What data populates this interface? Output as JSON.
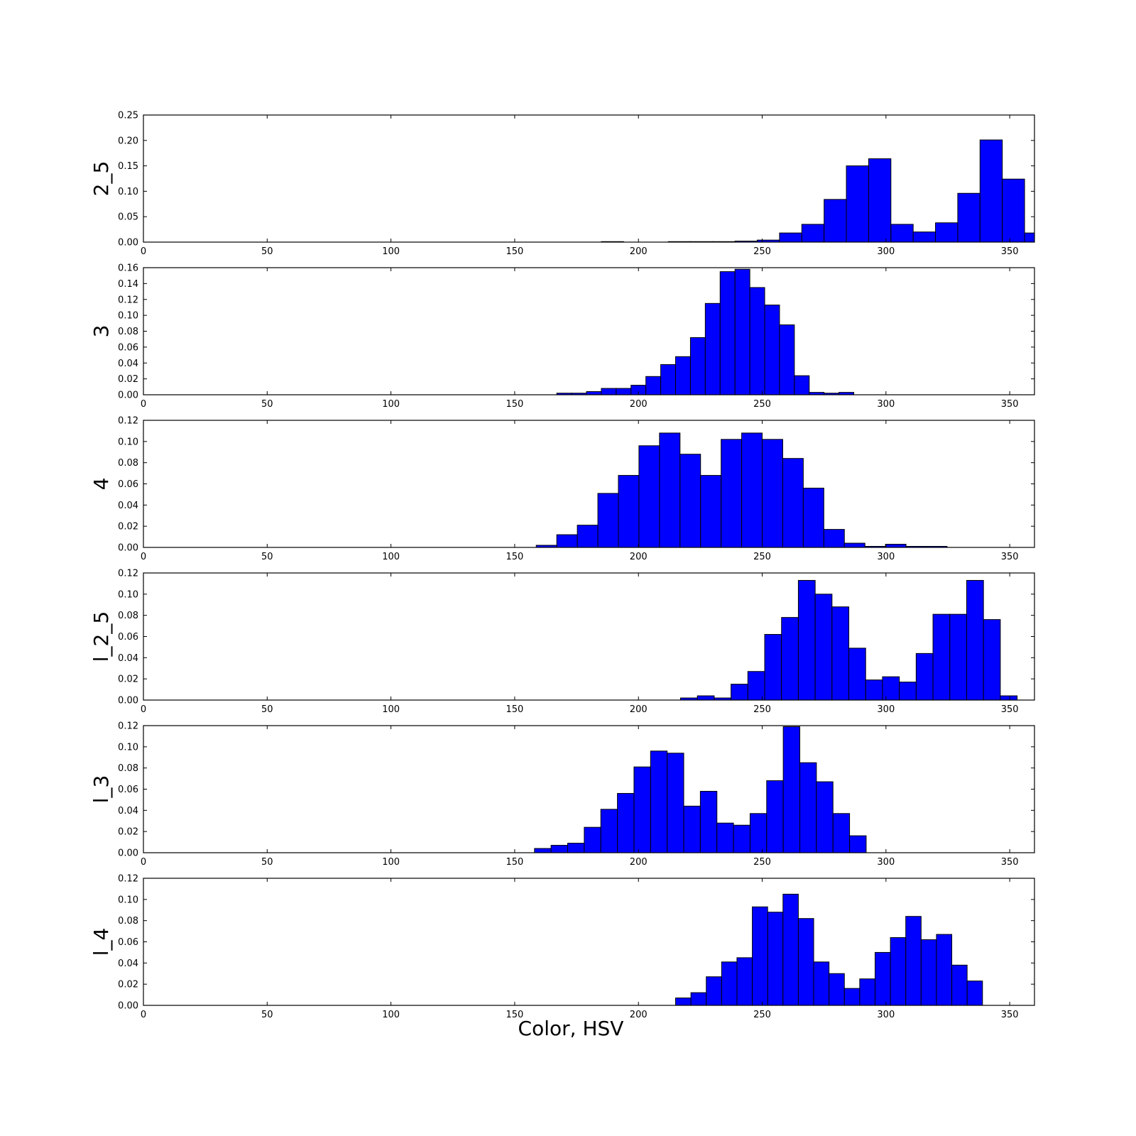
{
  "figure": {
    "xlabel": "Color, HSV"
  },
  "chart_data": [
    {
      "type": "bar",
      "ylabel": "2_5",
      "xlim": [
        0,
        360
      ],
      "ylim": [
        0,
        0.25
      ],
      "xticks": [
        "0",
        "50",
        "100",
        "150",
        "200",
        "250",
        "300",
        "350"
      ],
      "yticks": [
        "0.00",
        "0.05",
        "0.10",
        "0.15",
        "0.20",
        "0.25"
      ],
      "bins": [
        {
          "x0": 185.0,
          "x1": 194.0,
          "value": 0.001
        },
        {
          "x0": 212.0,
          "x1": 221.0,
          "value": 0.001
        },
        {
          "x0": 221.0,
          "x1": 230.0,
          "value": 0.001
        },
        {
          "x0": 230.0,
          "x1": 239.0,
          "value": 0.001
        },
        {
          "x0": 239.0,
          "x1": 248.0,
          "value": 0.002
        },
        {
          "x0": 248.0,
          "x1": 257.0,
          "value": 0.004
        },
        {
          "x0": 257.0,
          "x1": 266.0,
          "value": 0.018
        },
        {
          "x0": 266.0,
          "x1": 275.0,
          "value": 0.035
        },
        {
          "x0": 275.0,
          "x1": 284.0,
          "value": 0.084
        },
        {
          "x0": 284.0,
          "x1": 293.0,
          "value": 0.15
        },
        {
          "x0": 293.0,
          "x1": 302.0,
          "value": 0.164
        },
        {
          "x0": 302.0,
          "x1": 311.0,
          "value": 0.035
        },
        {
          "x0": 311.0,
          "x1": 320.0,
          "value": 0.02
        },
        {
          "x0": 320.0,
          "x1": 329.0,
          "value": 0.038
        },
        {
          "x0": 329.0,
          "x1": 338.0,
          "value": 0.096
        },
        {
          "x0": 338.0,
          "x1": 347.0,
          "value": 0.201
        },
        {
          "x0": 347.0,
          "x1": 356.0,
          "value": 0.124
        },
        {
          "x0": 356.0,
          "x1": 365.0,
          "value": 0.018
        }
      ]
    },
    {
      "type": "bar",
      "ylabel": "3",
      "xlim": [
        0,
        360
      ],
      "ylim": [
        0,
        0.16
      ],
      "xticks": [
        "0",
        "50",
        "100",
        "150",
        "200",
        "250",
        "300",
        "350"
      ],
      "yticks": [
        "0.00",
        "0.02",
        "0.04",
        "0.06",
        "0.08",
        "0.10",
        "0.12",
        "0.14",
        "0.16"
      ],
      "bins": [
        {
          "x0": 167.0,
          "x1": 173.0,
          "value": 0.002
        },
        {
          "x0": 173.0,
          "x1": 179.0,
          "value": 0.002
        },
        {
          "x0": 179.0,
          "x1": 185.0,
          "value": 0.004
        },
        {
          "x0": 185.0,
          "x1": 191.0,
          "value": 0.008
        },
        {
          "x0": 191.0,
          "x1": 197.0,
          "value": 0.008
        },
        {
          "x0": 197.0,
          "x1": 203.0,
          "value": 0.012
        },
        {
          "x0": 203.0,
          "x1": 209.0,
          "value": 0.023
        },
        {
          "x0": 209.0,
          "x1": 215.0,
          "value": 0.038
        },
        {
          "x0": 215.0,
          "x1": 221.0,
          "value": 0.048
        },
        {
          "x0": 221.0,
          "x1": 227.0,
          "value": 0.072
        },
        {
          "x0": 227.0,
          "x1": 233.0,
          "value": 0.115
        },
        {
          "x0": 233.0,
          "x1": 239.0,
          "value": 0.155
        },
        {
          "x0": 239.0,
          "x1": 245.0,
          "value": 0.158
        },
        {
          "x0": 245.0,
          "x1": 251.0,
          "value": 0.135
        },
        {
          "x0": 251.0,
          "x1": 257.0,
          "value": 0.113
        },
        {
          "x0": 257.0,
          "x1": 263.0,
          "value": 0.088
        },
        {
          "x0": 263.0,
          "x1": 269.0,
          "value": 0.024
        },
        {
          "x0": 269.0,
          "x1": 275.0,
          "value": 0.003
        },
        {
          "x0": 275.0,
          "x1": 281.0,
          "value": 0.002
        },
        {
          "x0": 281.0,
          "x1": 287.0,
          "value": 0.003
        }
      ]
    },
    {
      "type": "bar",
      "ylabel": "4",
      "xlim": [
        0,
        360
      ],
      "ylim": [
        0,
        0.12
      ],
      "xticks": [
        "0",
        "50",
        "100",
        "150",
        "200",
        "250",
        "300",
        "350"
      ],
      "yticks": [
        "0.00",
        "0.02",
        "0.04",
        "0.06",
        "0.08",
        "0.10",
        "0.12"
      ],
      "bins": [
        {
          "x0": 158.7,
          "x1": 167.0,
          "value": 0.002
        },
        {
          "x0": 167.0,
          "x1": 175.3,
          "value": 0.012
        },
        {
          "x0": 175.3,
          "x1": 183.6,
          "value": 0.021
        },
        {
          "x0": 183.6,
          "x1": 191.9,
          "value": 0.051
        },
        {
          "x0": 191.9,
          "x1": 200.2,
          "value": 0.068
        },
        {
          "x0": 200.2,
          "x1": 208.5,
          "value": 0.096
        },
        {
          "x0": 208.5,
          "x1": 216.8,
          "value": 0.108
        },
        {
          "x0": 216.8,
          "x1": 225.1,
          "value": 0.088
        },
        {
          "x0": 225.1,
          "x1": 233.4,
          "value": 0.068
        },
        {
          "x0": 233.4,
          "x1": 241.7,
          "value": 0.102
        },
        {
          "x0": 241.7,
          "x1": 250.0,
          "value": 0.108
        },
        {
          "x0": 250.0,
          "x1": 258.3,
          "value": 0.102
        },
        {
          "x0": 258.3,
          "x1": 266.6,
          "value": 0.084
        },
        {
          "x0": 266.6,
          "x1": 274.9,
          "value": 0.056
        },
        {
          "x0": 274.9,
          "x1": 283.2,
          "value": 0.017
        },
        {
          "x0": 283.2,
          "x1": 291.5,
          "value": 0.004
        },
        {
          "x0": 291.5,
          "x1": 299.8,
          "value": 0.001
        },
        {
          "x0": 299.8,
          "x1": 308.1,
          "value": 0.003
        },
        {
          "x0": 308.1,
          "x1": 316.4,
          "value": 0.001
        },
        {
          "x0": 316.4,
          "x1": 324.7,
          "value": 0.001
        }
      ]
    },
    {
      "type": "bar",
      "ylabel": "l_2_5",
      "xlim": [
        0,
        360
      ],
      "ylim": [
        0,
        0.12
      ],
      "xticks": [
        "0",
        "50",
        "100",
        "150",
        "200",
        "250",
        "300",
        "350"
      ],
      "yticks": [
        "0.00",
        "0.02",
        "0.04",
        "0.06",
        "0.08",
        "0.10",
        "0.12"
      ],
      "bins": [
        {
          "x0": 217.0,
          "x1": 223.8,
          "value": 0.002
        },
        {
          "x0": 223.8,
          "x1": 230.6,
          "value": 0.004
        },
        {
          "x0": 230.6,
          "x1": 237.4,
          "value": 0.002
        },
        {
          "x0": 237.4,
          "x1": 244.2,
          "value": 0.015
        },
        {
          "x0": 244.2,
          "x1": 251.0,
          "value": 0.027
        },
        {
          "x0": 251.0,
          "x1": 257.8,
          "value": 0.062
        },
        {
          "x0": 257.8,
          "x1": 264.6,
          "value": 0.078
        },
        {
          "x0": 264.6,
          "x1": 271.4,
          "value": 0.113
        },
        {
          "x0": 271.4,
          "x1": 278.2,
          "value": 0.1
        },
        {
          "x0": 278.2,
          "x1": 285.0,
          "value": 0.088
        },
        {
          "x0": 285.0,
          "x1": 291.8,
          "value": 0.049
        },
        {
          "x0": 291.8,
          "x1": 298.6,
          "value": 0.019
        },
        {
          "x0": 298.6,
          "x1": 305.4,
          "value": 0.022
        },
        {
          "x0": 305.4,
          "x1": 312.2,
          "value": 0.017
        },
        {
          "x0": 312.2,
          "x1": 319.0,
          "value": 0.044
        },
        {
          "x0": 319.0,
          "x1": 325.8,
          "value": 0.081
        },
        {
          "x0": 325.8,
          "x1": 332.6,
          "value": 0.081
        },
        {
          "x0": 332.6,
          "x1": 339.4,
          "value": 0.113
        },
        {
          "x0": 339.4,
          "x1": 346.2,
          "value": 0.076
        },
        {
          "x0": 346.2,
          "x1": 353.0,
          "value": 0.004
        }
      ]
    },
    {
      "type": "bar",
      "ylabel": "l_3",
      "xlim": [
        0,
        360
      ],
      "ylim": [
        0,
        0.12
      ],
      "xticks": [
        "0",
        "50",
        "100",
        "150",
        "200",
        "250",
        "300",
        "350"
      ],
      "yticks": [
        "0.00",
        "0.02",
        "0.04",
        "0.06",
        "0.08",
        "0.10",
        "0.12"
      ],
      "bins": [
        {
          "x0": 158.0,
          "x1": 164.7,
          "value": 0.004
        },
        {
          "x0": 164.7,
          "x1": 171.4,
          "value": 0.007
        },
        {
          "x0": 171.4,
          "x1": 178.1,
          "value": 0.009
        },
        {
          "x0": 178.1,
          "x1": 184.8,
          "value": 0.024
        },
        {
          "x0": 184.8,
          "x1": 191.5,
          "value": 0.041
        },
        {
          "x0": 191.5,
          "x1": 198.2,
          "value": 0.056
        },
        {
          "x0": 198.2,
          "x1": 204.9,
          "value": 0.081
        },
        {
          "x0": 204.9,
          "x1": 211.6,
          "value": 0.096
        },
        {
          "x0": 211.6,
          "x1": 218.3,
          "value": 0.094
        },
        {
          "x0": 218.3,
          "x1": 225.0,
          "value": 0.044
        },
        {
          "x0": 225.0,
          "x1": 231.7,
          "value": 0.058
        },
        {
          "x0": 231.7,
          "x1": 238.4,
          "value": 0.028
        },
        {
          "x0": 238.4,
          "x1": 245.1,
          "value": 0.026
        },
        {
          "x0": 245.1,
          "x1": 251.8,
          "value": 0.037
        },
        {
          "x0": 251.8,
          "x1": 258.5,
          "value": 0.068
        },
        {
          "x0": 258.5,
          "x1": 265.2,
          "value": 0.119
        },
        {
          "x0": 265.2,
          "x1": 271.9,
          "value": 0.085
        },
        {
          "x0": 271.9,
          "x1": 278.6,
          "value": 0.067
        },
        {
          "x0": 278.6,
          "x1": 285.3,
          "value": 0.037
        },
        {
          "x0": 285.3,
          "x1": 292.0,
          "value": 0.016
        }
      ]
    },
    {
      "type": "bar",
      "ylabel": "l_4",
      "xlim": [
        0,
        360
      ],
      "ylim": [
        0,
        0.12
      ],
      "xticks": [
        "0",
        "50",
        "100",
        "150",
        "200",
        "250",
        "300",
        "350"
      ],
      "yticks": [
        "0.00",
        "0.02",
        "0.04",
        "0.06",
        "0.08",
        "0.10",
        "0.12"
      ],
      "bins": [
        {
          "x0": 215.0,
          "x1": 221.2,
          "value": 0.007
        },
        {
          "x0": 221.2,
          "x1": 227.4,
          "value": 0.012
        },
        {
          "x0": 227.4,
          "x1": 233.6,
          "value": 0.027
        },
        {
          "x0": 233.6,
          "x1": 239.8,
          "value": 0.041
        },
        {
          "x0": 239.8,
          "x1": 246.0,
          "value": 0.045
        },
        {
          "x0": 246.0,
          "x1": 252.2,
          "value": 0.093
        },
        {
          "x0": 252.2,
          "x1": 258.4,
          "value": 0.088
        },
        {
          "x0": 258.4,
          "x1": 264.6,
          "value": 0.105
        },
        {
          "x0": 264.6,
          "x1": 270.8,
          "value": 0.082
        },
        {
          "x0": 270.8,
          "x1": 277.0,
          "value": 0.041
        },
        {
          "x0": 277.0,
          "x1": 283.2,
          "value": 0.03
        },
        {
          "x0": 283.2,
          "x1": 289.4,
          "value": 0.016
        },
        {
          "x0": 289.4,
          "x1": 295.6,
          "value": 0.025
        },
        {
          "x0": 295.6,
          "x1": 301.8,
          "value": 0.05
        },
        {
          "x0": 301.8,
          "x1": 308.0,
          "value": 0.064
        },
        {
          "x0": 308.0,
          "x1": 314.2,
          "value": 0.084
        },
        {
          "x0": 314.2,
          "x1": 320.4,
          "value": 0.062
        },
        {
          "x0": 320.4,
          "x1": 326.6,
          "value": 0.067
        },
        {
          "x0": 326.6,
          "x1": 332.8,
          "value": 0.038
        },
        {
          "x0": 332.8,
          "x1": 339.0,
          "value": 0.023
        }
      ]
    }
  ]
}
